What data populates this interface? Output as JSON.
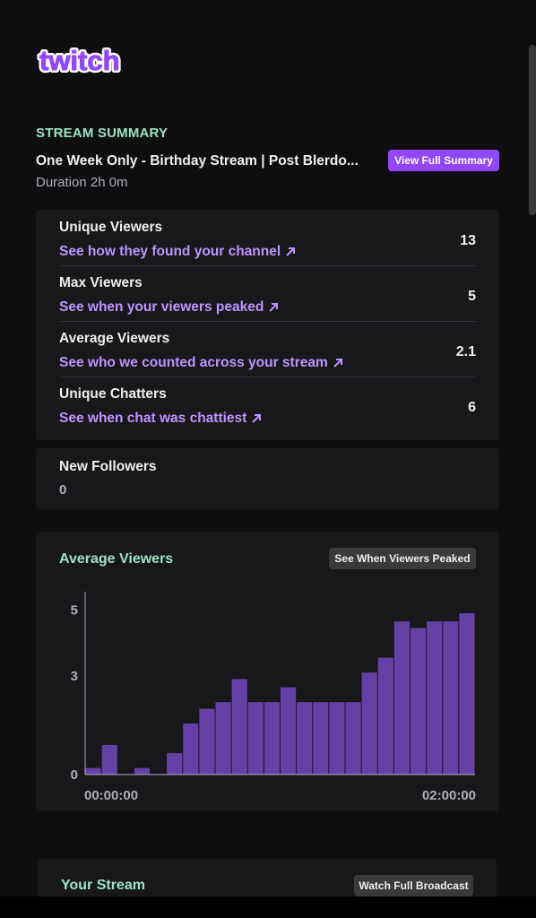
{
  "brand": {
    "logo_text": "twitch",
    "color": "#9147ff"
  },
  "summary": {
    "section_label": "STREAM SUMMARY",
    "title": "One Week Only - Birthday Stream | Post Blerdo...",
    "duration": "Duration 2h 0m",
    "view_full_label": "View Full Summary"
  },
  "stats": [
    {
      "label": "Unique Viewers",
      "link": "See how they found your channel",
      "value": "13"
    },
    {
      "label": "Max Viewers",
      "link": "See when your viewers peaked",
      "value": "5"
    },
    {
      "label": "Average Viewers",
      "link": "See who we counted across your stream",
      "value": "2.1"
    },
    {
      "label": "Unique Chatters",
      "link": "See when chat was chattiest",
      "value": "6"
    }
  ],
  "followers": {
    "label": "New Followers",
    "value": "0"
  },
  "chart_card": {
    "title": "Average Viewers",
    "button_label": "See When Viewers Peaked"
  },
  "chart_data": {
    "type": "bar",
    "title": "Average Viewers",
    "x_tick_labels": [
      "00:00:00",
      "02:00:00"
    ],
    "y_tick_labels": [
      "0",
      "3",
      "5"
    ],
    "y_ticks": [
      0,
      3,
      5
    ],
    "ylim": [
      0,
      5.5
    ],
    "values": [
      0.2,
      0.9,
      0,
      0.2,
      0,
      0.65,
      1.55,
      2.0,
      2.2,
      2.9,
      2.2,
      2.2,
      2.65,
      2.2,
      2.2,
      2.2,
      2.2,
      3.1,
      3.55,
      4.65,
      4.45,
      4.65,
      4.65,
      4.9
    ],
    "bar_color": "#6441a5",
    "grid": false
  },
  "your_stream": {
    "title": "Your Stream",
    "button_label": "Watch Full Broadcast"
  }
}
